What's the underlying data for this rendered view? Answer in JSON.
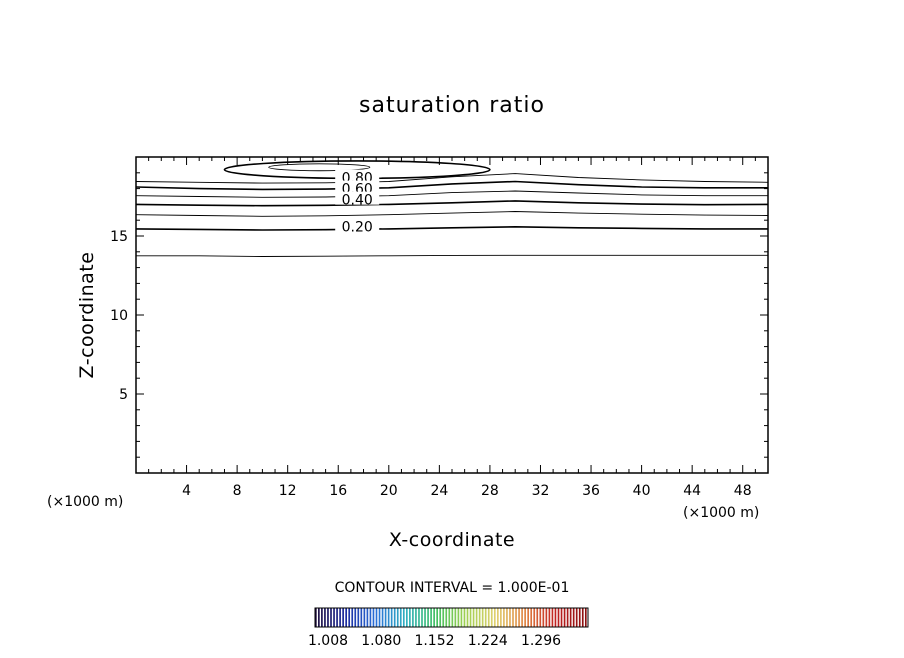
{
  "chart_data": {
    "type": "contour",
    "title": "saturation ratio",
    "xlabel": "X-coordinate",
    "ylabel": "Z-coordinate",
    "x_unit_left": "(×1000 m)",
    "x_unit_right": "(×1000 m)",
    "xlim": [
      0,
      50
    ],
    "ylim": [
      0,
      20
    ],
    "x_ticks": [
      4,
      8,
      12,
      16,
      20,
      24,
      28,
      32,
      36,
      40,
      44,
      48
    ],
    "y_ticks": [
      5,
      10,
      15
    ],
    "contour_interval_text": "CONTOUR INTERVAL = 1.000E-01",
    "contour_labels": [
      {
        "label": "0.80",
        "x": 17.5,
        "z": 18.7
      },
      {
        "label": "0.60",
        "x": 17.5,
        "z": 18.0
      },
      {
        "label": "0.40",
        "x": 17.5,
        "z": 17.3
      },
      {
        "label": "0.20",
        "x": 17.5,
        "z": 15.6
      }
    ],
    "contours": [
      {
        "level": 0.1,
        "major": false,
        "z": [
          13.75,
          13.75,
          13.7,
          13.72,
          13.75,
          13.77,
          13.78,
          13.78,
          13.78,
          13.78,
          13.78
        ]
      },
      {
        "level": 0.2,
        "major": true,
        "z": [
          15.45,
          15.42,
          15.38,
          15.4,
          15.45,
          15.52,
          15.58,
          15.52,
          15.48,
          15.45,
          15.45
        ]
      },
      {
        "level": 0.3,
        "major": false,
        "z": [
          16.35,
          16.3,
          16.25,
          16.28,
          16.35,
          16.45,
          16.55,
          16.45,
          16.38,
          16.32,
          16.3
        ]
      },
      {
        "level": 0.4,
        "major": true,
        "z": [
          17.0,
          16.95,
          16.92,
          16.94,
          17.0,
          17.1,
          17.22,
          17.1,
          17.02,
          16.98,
          17.0
        ]
      },
      {
        "level": 0.5,
        "major": false,
        "z": [
          17.55,
          17.5,
          17.45,
          17.47,
          17.55,
          17.75,
          17.85,
          17.72,
          17.6,
          17.55,
          17.55
        ]
      },
      {
        "level": 0.6,
        "major": true,
        "z": [
          18.1,
          18.0,
          17.95,
          17.97,
          18.05,
          18.3,
          18.45,
          18.25,
          18.1,
          18.05,
          18.05
        ]
      },
      {
        "level": 0.7,
        "major": false,
        "z": [
          18.45,
          18.4,
          18.35,
          18.37,
          18.45,
          18.75,
          18.95,
          18.7,
          18.55,
          18.45,
          18.4
        ]
      }
    ],
    "closed_contours": [
      {
        "level": 0.8,
        "major": true,
        "cx": 17.5,
        "cz": 19.2,
        "rx": 10.5,
        "rz": 0.55
      },
      {
        "level": 0.9,
        "major": false,
        "cx": 14.5,
        "cz": 19.35,
        "rx": 4.0,
        "rz": 0.22
      }
    ],
    "colorbar": {
      "labels": [
        "1.008",
        "1.080",
        "1.152",
        "1.224",
        "1.296"
      ],
      "colors": [
        "#1a0a3a",
        "#1a2aa0",
        "#2a70d8",
        "#30b0c0",
        "#40c060",
        "#a0d050",
        "#e0d070",
        "#e08040",
        "#c02020",
        "#8a1010"
      ]
    }
  }
}
